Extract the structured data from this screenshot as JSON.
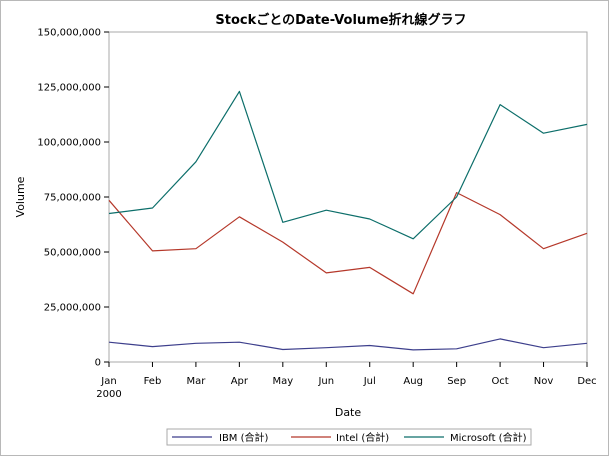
{
  "chart_data": {
    "type": "line",
    "title": "StockごとのDate-Volume折れ線グラフ",
    "xlabel": "Date",
    "ylabel": "Volume",
    "categories": [
      "Jan",
      "Feb",
      "Mar",
      "Apr",
      "May",
      "Jun",
      "Jul",
      "Aug",
      "Sep",
      "Oct",
      "Nov",
      "Dec"
    ],
    "x_year_label": "2000",
    "ylim": [
      0,
      150000000
    ],
    "yticks": [
      0,
      25000000,
      50000000,
      75000000,
      100000000,
      125000000,
      150000000
    ],
    "ytick_labels": [
      "0",
      "25,000,000",
      "50,000,000",
      "75,000,000",
      "100,000,000",
      "125,000,000",
      "150,000,000"
    ],
    "grid": false,
    "legend_position": "bottom",
    "series": [
      {
        "name": "IBM (合計)",
        "color": "#3d3f8c",
        "values": [
          9000000,
          7000000,
          8500000,
          9000000,
          5700000,
          6500000,
          7500000,
          5500000,
          6000000,
          10500000,
          6500000,
          8500000
        ]
      },
      {
        "name": "Intel (合計)",
        "color": "#b5382a",
        "values": [
          73500000,
          50500000,
          51500000,
          66000000,
          54500000,
          40500000,
          43000000,
          31000000,
          77000000,
          67000000,
          51500000,
          58500000
        ]
      },
      {
        "name": "Microsoft (合計)",
        "color": "#0c6e6a",
        "values": [
          67500000,
          70000000,
          91000000,
          123000000,
          63500000,
          69000000,
          65000000,
          56000000,
          75000000,
          117000000,
          104000000,
          108000000
        ]
      }
    ]
  }
}
